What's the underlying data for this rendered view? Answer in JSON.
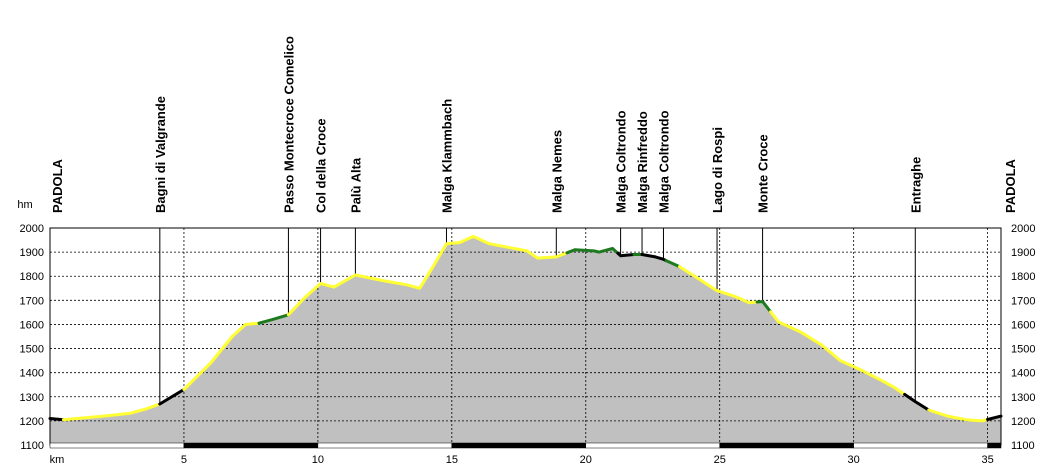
{
  "chart_data": {
    "type": "area",
    "title": "",
    "xlabel": "km",
    "ylabel": "hm",
    "xlim": [
      0,
      35.5
    ],
    "ylim": [
      1100,
      2000
    ],
    "x_ticks": [
      5,
      10,
      15,
      20,
      25,
      30,
      35
    ],
    "y_ticks": [
      1100,
      1200,
      1300,
      1400,
      1500,
      1600,
      1700,
      1800,
      1900,
      2000
    ],
    "grid": true,
    "fill_color": "#c0c0c0",
    "surface_colors": {
      "paved": "#000000",
      "gravel": "#ffff33",
      "trail": "#1e7a1e"
    },
    "waypoints": [
      {
        "name": "PADOLA",
        "km": 0,
        "at_edge": true
      },
      {
        "name": "Bagni di Valgrande",
        "km": 4.1
      },
      {
        "name": "Passo Montecroce Comelico",
        "km": 8.9
      },
      {
        "name": "Col della Croce",
        "km": 10.1
      },
      {
        "name": "Palù Alta",
        "km": 11.4
      },
      {
        "name": "Malga Klammbach",
        "km": 14.8
      },
      {
        "name": "Malga Nemes",
        "km": 18.9
      },
      {
        "name": "Malga Coltrondo",
        "km": 21.3
      },
      {
        "name": "Malga Rinfreddo",
        "km": 22.1
      },
      {
        "name": "Malga Coltrondo",
        "km": 22.9
      },
      {
        "name": "Lago di Rospi",
        "km": 24.9
      },
      {
        "name": "Monte Croce",
        "km": 26.6
      },
      {
        "name": "Entraghe",
        "km": 32.3
      },
      {
        "name": "PADOLA",
        "km": 35.5,
        "at_edge": true
      }
    ],
    "series": [
      {
        "values": [
          [
            0,
            1210
          ],
          [
            0.5,
            1205
          ],
          [
            1,
            1210
          ],
          [
            2,
            1220
          ],
          [
            3,
            1232
          ],
          [
            3.6,
            1250
          ],
          [
            4.1,
            1270
          ],
          [
            5.0,
            1330
          ],
          [
            6.0,
            1440
          ],
          [
            6.8,
            1550
          ],
          [
            7.3,
            1600
          ],
          [
            7.8,
            1605
          ],
          [
            8.3,
            1620
          ],
          [
            8.9,
            1640
          ],
          [
            9.5,
            1710
          ],
          [
            10.1,
            1770
          ],
          [
            10.6,
            1755
          ],
          [
            11.4,
            1805
          ],
          [
            12.5,
            1780
          ],
          [
            13.3,
            1765
          ],
          [
            13.8,
            1750
          ],
          [
            14.3,
            1840
          ],
          [
            14.8,
            1935
          ],
          [
            15.3,
            1940
          ],
          [
            15.8,
            1965
          ],
          [
            16.4,
            1935
          ],
          [
            17.1,
            1920
          ],
          [
            17.8,
            1905
          ],
          [
            18.2,
            1875
          ],
          [
            18.9,
            1880
          ],
          [
            19.6,
            1910
          ],
          [
            20.3,
            1905
          ],
          [
            20.5,
            1900
          ],
          [
            21.0,
            1915
          ],
          [
            21.3,
            1885
          ],
          [
            21.8,
            1890
          ],
          [
            22.1,
            1890
          ],
          [
            22.6,
            1880
          ],
          [
            22.9,
            1870
          ],
          [
            23.5,
            1840
          ],
          [
            24.2,
            1790
          ],
          [
            24.9,
            1740
          ],
          [
            25.6,
            1715
          ],
          [
            26.1,
            1690
          ],
          [
            26.6,
            1695
          ],
          [
            27.2,
            1610
          ],
          [
            28.0,
            1570
          ],
          [
            28.8,
            1515
          ],
          [
            29.5,
            1450
          ],
          [
            30.3,
            1410
          ],
          [
            31.0,
            1370
          ],
          [
            31.5,
            1340
          ],
          [
            32.3,
            1280
          ],
          [
            32.8,
            1245
          ],
          [
            33.5,
            1220
          ],
          [
            34.2,
            1205
          ],
          [
            34.8,
            1200
          ],
          [
            35.5,
            1220
          ]
        ]
      }
    ],
    "surface_segments": [
      {
        "from": 0,
        "to": 0.5,
        "surface": "paved"
      },
      {
        "from": 0.5,
        "to": 4.1,
        "surface": "gravel"
      },
      {
        "from": 4.1,
        "to": 5.0,
        "surface": "paved"
      },
      {
        "from": 5.0,
        "to": 7.8,
        "surface": "gravel"
      },
      {
        "from": 7.8,
        "to": 8.9,
        "surface": "trail"
      },
      {
        "from": 8.9,
        "to": 19.3,
        "surface": "gravel"
      },
      {
        "from": 19.3,
        "to": 21.2,
        "surface": "trail"
      },
      {
        "from": 21.2,
        "to": 21.8,
        "surface": "paved"
      },
      {
        "from": 21.8,
        "to": 22.1,
        "surface": "trail"
      },
      {
        "from": 22.1,
        "to": 23.0,
        "surface": "paved"
      },
      {
        "from": 23.0,
        "to": 23.5,
        "surface": "trail"
      },
      {
        "from": 23.5,
        "to": 26.4,
        "surface": "gravel"
      },
      {
        "from": 26.4,
        "to": 26.9,
        "surface": "trail"
      },
      {
        "from": 26.9,
        "to": 31.9,
        "surface": "gravel"
      },
      {
        "from": 31.9,
        "to": 32.8,
        "surface": "paved"
      },
      {
        "from": 32.8,
        "to": 35.0,
        "surface": "gravel"
      },
      {
        "from": 35.0,
        "to": 35.5,
        "surface": "paved"
      }
    ]
  }
}
